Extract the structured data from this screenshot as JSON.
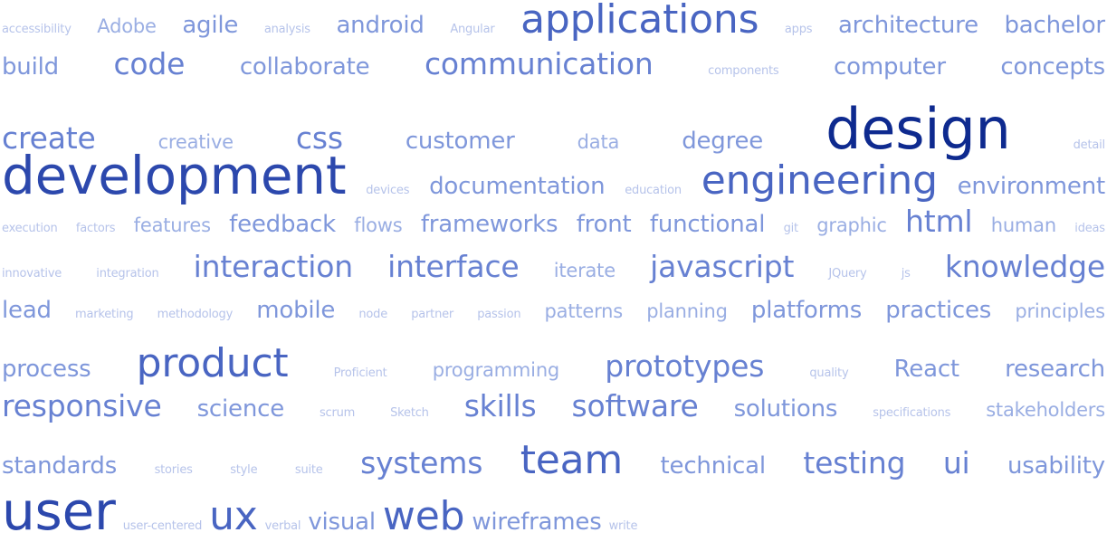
{
  "word_cloud": {
    "rows": [
      [
        {
          "text": "accessibility",
          "weight": 1
        },
        {
          "text": "Adobe",
          "weight": 2
        },
        {
          "text": "agile",
          "weight": 3
        },
        {
          "text": "analysis",
          "weight": 1
        },
        {
          "text": "android",
          "weight": 3
        },
        {
          "text": "Angular",
          "weight": 1
        },
        {
          "text": "applications",
          "weight": 5
        },
        {
          "text": "apps",
          "weight": 1
        },
        {
          "text": "architecture",
          "weight": 3
        },
        {
          "text": "bachelor",
          "weight": 3
        }
      ],
      [
        {
          "text": "build",
          "weight": 3
        },
        {
          "text": "code",
          "weight": 4
        },
        {
          "text": "collaborate",
          "weight": 3
        },
        {
          "text": "communication",
          "weight": 4
        },
        {
          "text": "components",
          "weight": 1
        },
        {
          "text": "computer",
          "weight": 3
        },
        {
          "text": "concepts",
          "weight": 3
        }
      ],
      [
        {
          "text": "create",
          "weight": 4
        },
        {
          "text": "creative",
          "weight": 2
        },
        {
          "text": "css",
          "weight": 4
        },
        {
          "text": "customer",
          "weight": 3
        },
        {
          "text": "data",
          "weight": 2
        },
        {
          "text": "degree",
          "weight": 3
        },
        {
          "text": "design",
          "weight": 7
        },
        {
          "text": "detail",
          "weight": 1
        }
      ],
      [
        {
          "text": "development",
          "weight": 6
        },
        {
          "text": "devices",
          "weight": 1
        },
        {
          "text": "documentation",
          "weight": 3
        },
        {
          "text": "education",
          "weight": 1
        },
        {
          "text": "engineering",
          "weight": 5
        },
        {
          "text": "environment",
          "weight": 3
        }
      ],
      [
        {
          "text": "execution",
          "weight": 1
        },
        {
          "text": "factors",
          "weight": 1
        },
        {
          "text": "features",
          "weight": 2
        },
        {
          "text": "feedback",
          "weight": 3
        },
        {
          "text": "flows",
          "weight": 2
        },
        {
          "text": "frameworks",
          "weight": 3
        },
        {
          "text": "front",
          "weight": 3
        },
        {
          "text": "functional",
          "weight": 3
        },
        {
          "text": "git",
          "weight": 1
        },
        {
          "text": "graphic",
          "weight": 2
        },
        {
          "text": "html",
          "weight": 4
        },
        {
          "text": "human",
          "weight": 2
        },
        {
          "text": "ideas",
          "weight": 1
        }
      ],
      [
        {
          "text": "innovative",
          "weight": 1
        },
        {
          "text": "integration",
          "weight": 1
        },
        {
          "text": "interaction",
          "weight": 4
        },
        {
          "text": "interface",
          "weight": 4
        },
        {
          "text": "iterate",
          "weight": 2
        },
        {
          "text": "javascript",
          "weight": 4
        },
        {
          "text": "JQuery",
          "weight": 1
        },
        {
          "text": "js",
          "weight": 1
        },
        {
          "text": "knowledge",
          "weight": 4
        }
      ],
      [
        {
          "text": "lead",
          "weight": 3
        },
        {
          "text": "marketing",
          "weight": 1
        },
        {
          "text": "methodology",
          "weight": 1
        },
        {
          "text": "mobile",
          "weight": 3
        },
        {
          "text": "node",
          "weight": 1
        },
        {
          "text": "partner",
          "weight": 1
        },
        {
          "text": "passion",
          "weight": 1
        },
        {
          "text": "patterns",
          "weight": 2
        },
        {
          "text": "planning",
          "weight": 2
        },
        {
          "text": "platforms",
          "weight": 3
        },
        {
          "text": "practices",
          "weight": 3
        },
        {
          "text": "principles",
          "weight": 2
        }
      ],
      [
        {
          "text": "process",
          "weight": 3
        },
        {
          "text": "product",
          "weight": 5
        },
        {
          "text": "Proficient",
          "weight": 1
        },
        {
          "text": "programming",
          "weight": 2
        },
        {
          "text": "prototypes",
          "weight": 4
        },
        {
          "text": "quality",
          "weight": 1
        },
        {
          "text": "React",
          "weight": 3
        },
        {
          "text": "research",
          "weight": 3
        }
      ],
      [
        {
          "text": "responsive",
          "weight": 4
        },
        {
          "text": "science",
          "weight": 3
        },
        {
          "text": "scrum",
          "weight": 1
        },
        {
          "text": "Sketch",
          "weight": 1
        },
        {
          "text": "skills",
          "weight": 4
        },
        {
          "text": "software",
          "weight": 4
        },
        {
          "text": "solutions",
          "weight": 3
        },
        {
          "text": "specifications",
          "weight": 1
        },
        {
          "text": "stakeholders",
          "weight": 2
        }
      ],
      [
        {
          "text": "standards",
          "weight": 3
        },
        {
          "text": "stories",
          "weight": 1
        },
        {
          "text": "style",
          "weight": 1
        },
        {
          "text": "suite",
          "weight": 1
        },
        {
          "text": "systems",
          "weight": 4
        },
        {
          "text": "team",
          "weight": 5
        },
        {
          "text": "technical",
          "weight": 3
        },
        {
          "text": "testing",
          "weight": 4
        },
        {
          "text": "ui",
          "weight": 4
        },
        {
          "text": "usability",
          "weight": 3
        }
      ],
      [
        {
          "text": "user",
          "weight": 6
        },
        {
          "text": "user-centered",
          "weight": 1
        },
        {
          "text": "ux",
          "weight": 5
        },
        {
          "text": "verbal",
          "weight": 1
        },
        {
          "text": "visual",
          "weight": 3
        },
        {
          "text": "web",
          "weight": 5
        },
        {
          "text": "wireframes",
          "weight": 3
        },
        {
          "text": "write",
          "weight": 1
        }
      ]
    ]
  }
}
